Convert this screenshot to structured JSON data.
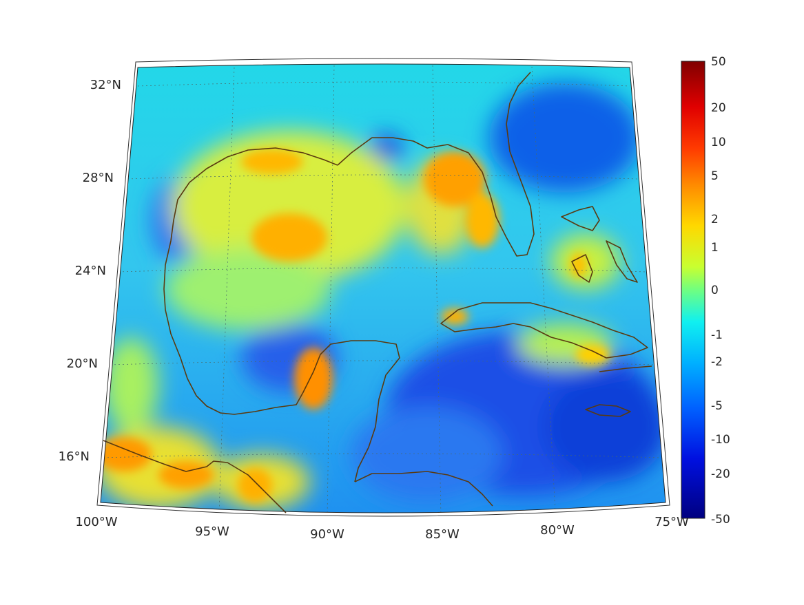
{
  "map": {
    "type": "heatmap",
    "projection": "conic",
    "region": "Gulf of Mexico and Caribbean",
    "grid": true,
    "extent": {
      "lon": [
        -100,
        -75
      ],
      "lat": [
        14.5,
        32.5
      ]
    },
    "lat_labels": [
      {
        "value": 32,
        "label": "32°N"
      },
      {
        "value": 28,
        "label": "28°N"
      },
      {
        "value": 24,
        "label": "24°N"
      },
      {
        "value": 20,
        "label": "20°N"
      },
      {
        "value": 16,
        "label": "16°N"
      }
    ],
    "lon_labels": [
      {
        "value": -100,
        "label": "100°W"
      },
      {
        "value": -95,
        "label": "95°W"
      },
      {
        "value": -90,
        "label": "90°W"
      },
      {
        "value": -85,
        "label": "85°W"
      },
      {
        "value": -80,
        "label": "80°W"
      },
      {
        "value": -75,
        "label": "75°W"
      }
    ],
    "coastline_color": "#5a3a10",
    "colormap": "jet"
  },
  "colorbar": {
    "ticks": [
      "50",
      "20",
      "10",
      "5",
      "2",
      "1",
      "0",
      "-1",
      "-2",
      "-5",
      "-10",
      "-20",
      "-50"
    ],
    "range": [
      -50,
      50
    ],
    "scale": "symmetric-log"
  }
}
